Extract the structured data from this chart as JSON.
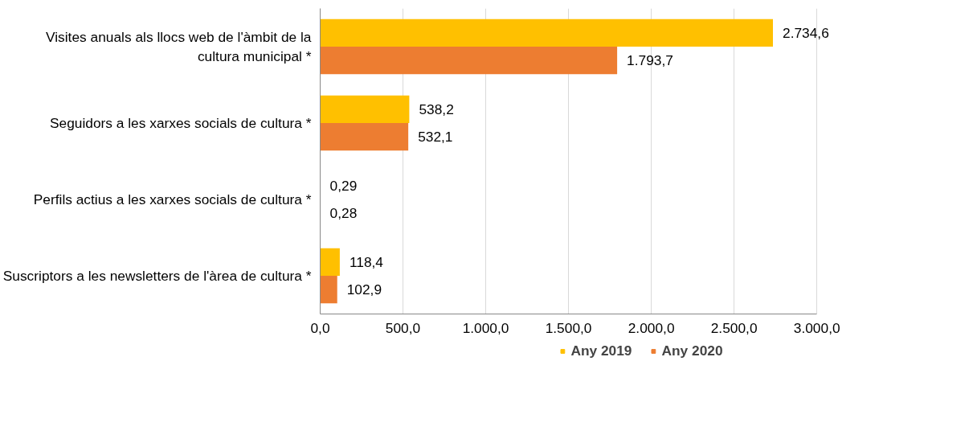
{
  "chart_data": {
    "type": "bar",
    "orientation": "horizontal",
    "categories": [
      "Visites anuals als llocs web de l'àmbit de la cultura municipal *",
      "Seguidors a les xarxes socials de cultura *",
      "Perfils actius a les xarxes socials de cultura *",
      "Suscriptors a les newsletters de l'àrea de cultura *"
    ],
    "series": [
      {
        "name": "Any 2019",
        "color": "#ffc000",
        "values": [
          2734.6,
          538.2,
          0.29,
          118.4
        ],
        "value_labels": [
          "2.734,6",
          "538,2",
          "0,29",
          "118,4"
        ]
      },
      {
        "name": "Any 2020",
        "color": "#ed7d31",
        "values": [
          1793.7,
          532.1,
          0.28,
          102.9
        ],
        "value_labels": [
          "1.793,7",
          "532,1",
          "0,28",
          "102,9"
        ]
      }
    ],
    "xlim": [
      0,
      3000
    ],
    "xticks": [
      {
        "value": 0,
        "label": "0,0"
      },
      {
        "value": 500,
        "label": "500,0"
      },
      {
        "value": 1000,
        "label": "1.000,0"
      },
      {
        "value": 1500,
        "label": "1.500,0"
      },
      {
        "value": 2000,
        "label": "2.000,0"
      },
      {
        "value": 2500,
        "label": "2.500,0"
      },
      {
        "value": 3000,
        "label": "3.000,0"
      }
    ],
    "grid": "x",
    "legend": "bottom"
  }
}
